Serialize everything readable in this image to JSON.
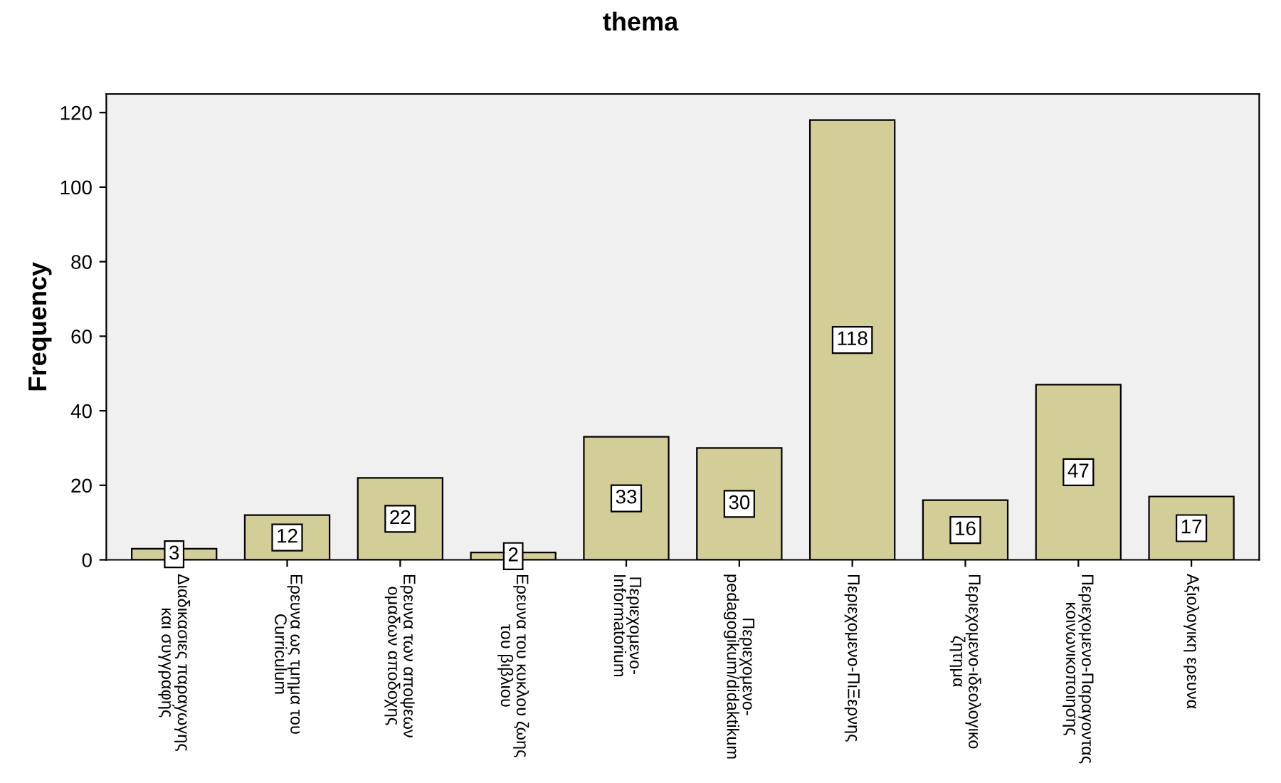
{
  "chart_data": {
    "type": "bar",
    "title": "thema",
    "ylabel": "Frequency",
    "categories": [
      "Διαδικασιες παραγωγης\nκαι συγγραφής",
      "Ερευνα ως τμημα του\nCurriculum",
      "Ερευνα των αποψεων\nομαδων αποδοχης",
      "Ερευνα του κυκλου ζωης\nτου βιβλιου",
      "Περιεχομενο-\nInformatorium",
      "Περιεχομενο-\npedagogikum/didaktikum",
      "Περιεχομενο-ΠιΞερνης",
      "Περιεχομενο-ιδεολογικο\nζητημα",
      "Περιεχομενο-Παραγοντας\nκοινωνικοποιησης",
      "Αξιολογικη ερευνα"
    ],
    "values": [
      3,
      12,
      22,
      2,
      33,
      30,
      118,
      16,
      47,
      17
    ],
    "color": "#d3ce98",
    "ylim": [
      0,
      125
    ],
    "yticks": [
      0,
      20,
      40,
      60,
      80,
      100,
      120
    ],
    "data_labels": true,
    "grid": false,
    "legend": false
  }
}
